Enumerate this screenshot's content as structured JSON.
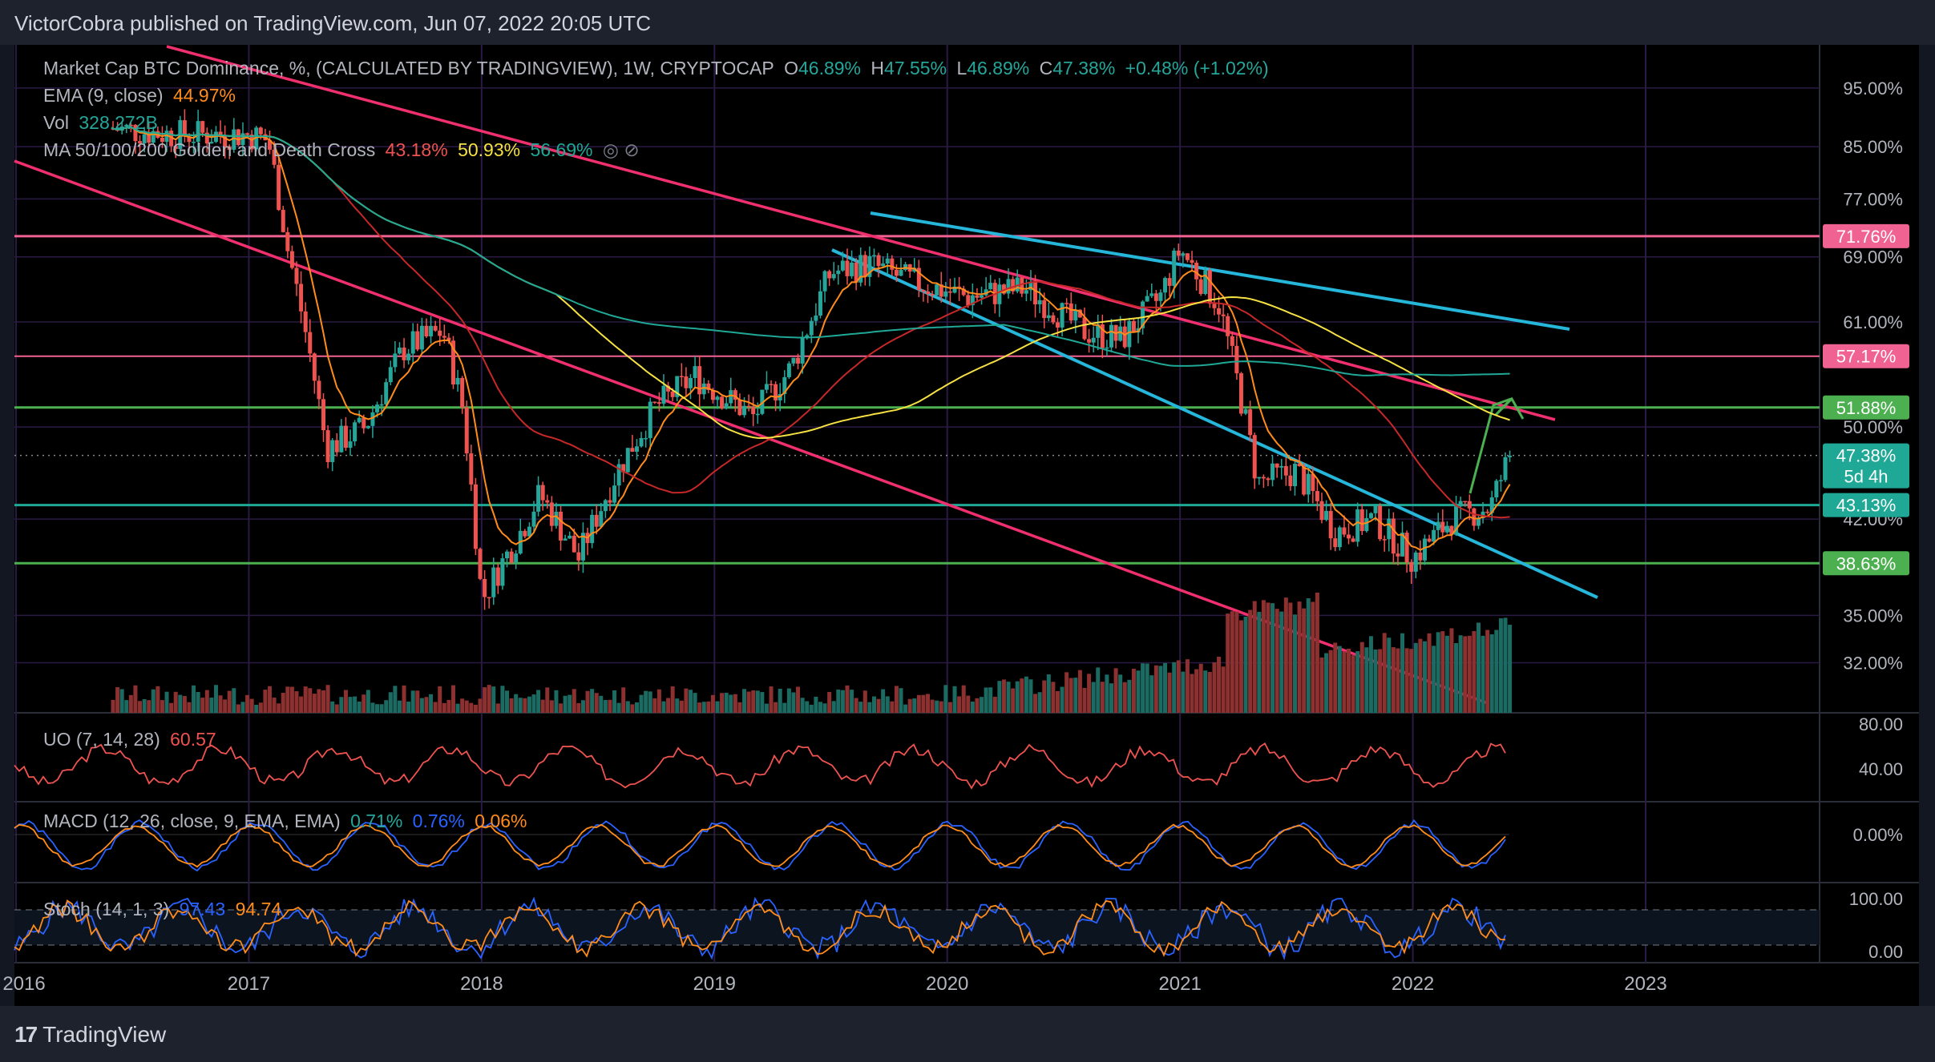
{
  "header": {
    "published": "VictorCobra published on TradingView.com, Jun 07, 2022 20:05 UTC"
  },
  "footer": {
    "brand": "TradingView"
  },
  "legend": {
    "symbol": "Market Cap BTC Dominance, %, (CALCULATED BY TRADINGVIEW), 1W, CRYPTOCAP",
    "ohlc": [
      {
        "k": "O",
        "v": "46.89%"
      },
      {
        "k": "H",
        "v": "47.55%"
      },
      {
        "k": "L",
        "v": "46.89%"
      },
      {
        "k": "C",
        "v": "47.38%"
      }
    ],
    "change": "+0.48% (+1.02%)",
    "ema_label": "EMA (9, close)",
    "ema_value": "44.97%",
    "vol_label": "Vol",
    "vol_value": "328.272B",
    "ma_label": "MA 50/100/200 Golden and Death Cross",
    "ma_values": [
      "43.18%",
      "50.93%",
      "56.69%"
    ],
    "uo_label": "UO (7, 14, 28)",
    "uo_value": "60.57",
    "macd_label": "MACD (12, 26, close, 9, EMA, EMA)",
    "macd_values": [
      "0.71%",
      "0.76%",
      "0.06%"
    ],
    "stoch_label": "Stoch (14, 1, 3)",
    "stoch_values": [
      "97.43",
      "94.74"
    ]
  },
  "colors": {
    "up": "#26a69a",
    "down": "#ef5350",
    "pink_line": "#f0306e",
    "blue_line": "#25b6d9",
    "ema": "#ff8c1a",
    "ma50": "#c62828",
    "ma100": "#f5e142",
    "ma200": "#1fa896",
    "green_level": "#4caf50",
    "pink_level": "#f06292"
  },
  "chart_data": {
    "type": "candlestick",
    "title": "Market Cap BTC Dominance",
    "x_ticks": [
      "2016",
      "2017",
      "2018",
      "2019",
      "2020",
      "2021",
      "2022",
      "2023"
    ],
    "y_ticks": [
      "95.00%",
      "85.00%",
      "77.00%",
      "69.00%",
      "61.00%",
      "57.17%",
      "50.00%",
      "42.00%",
      "38.63%",
      "35.00%",
      "32.00%"
    ],
    "ylim": [
      30,
      100
    ],
    "y_scale": "log",
    "price_labels": [
      {
        "value": 71.76,
        "text": "71.76%",
        "color": "#f06292"
      },
      {
        "value": 57.17,
        "text": "57.17%",
        "color": "#f06292"
      },
      {
        "value": 51.88,
        "text": "51.88%",
        "color": "#4caf50"
      },
      {
        "value": 47.38,
        "text": "47.38%",
        "color": "#1fa896",
        "sub": "5d 4h"
      },
      {
        "value": 43.13,
        "text": "43.13%",
        "color": "#1fa896"
      },
      {
        "value": 38.63,
        "text": "38.63%",
        "color": "#4caf50"
      }
    ],
    "dominance_path": [
      [
        "2016-06",
        88
      ],
      [
        "2016-09",
        87
      ],
      [
        "2017-01",
        87
      ],
      [
        "2017-02",
        86
      ],
      [
        "2017-03",
        70
      ],
      [
        "2017-05",
        48
      ],
      [
        "2017-07",
        50
      ],
      [
        "2017-09",
        58
      ],
      [
        "2017-11",
        60
      ],
      [
        "2017-12",
        52
      ],
      [
        "2018-01",
        36
      ],
      [
        "2018-03",
        41
      ],
      [
        "2018-04",
        44
      ],
      [
        "2018-06",
        39
      ],
      [
        "2018-08",
        46
      ],
      [
        "2018-10",
        52
      ],
      [
        "2018-12",
        55
      ],
      [
        "2019-03",
        51
      ],
      [
        "2019-05",
        56
      ],
      [
        "2019-07",
        67
      ],
      [
        "2019-09",
        68
      ],
      [
        "2019-11",
        66
      ],
      [
        "2020-02",
        64
      ],
      [
        "2020-05",
        65
      ],
      [
        "2020-08",
        60
      ],
      [
        "2020-10",
        59
      ],
      [
        "2020-12",
        64
      ],
      [
        "2021-01",
        70
      ],
      [
        "2021-03",
        63
      ],
      [
        "2021-05",
        45
      ],
      [
        "2021-07",
        46
      ],
      [
        "2021-09",
        41
      ],
      [
        "2021-11",
        42
      ],
      [
        "2022-01",
        39
      ],
      [
        "2022-03",
        42
      ],
      [
        "2022-05",
        43
      ],
      [
        "2022-06",
        47.38
      ]
    ],
    "uo_ticks": [
      "80.00",
      "40.00"
    ],
    "macd_ticks": [
      "0.00%"
    ],
    "stoch_ticks": [
      "100.00",
      "0.00"
    ]
  }
}
